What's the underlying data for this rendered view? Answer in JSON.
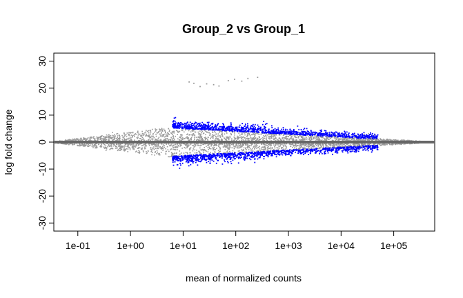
{
  "chart_data": {
    "type": "scatter",
    "title": "Group_2 vs Group_1",
    "xlabel": "mean of normalized counts",
    "ylabel": "log fold change",
    "x_scale": "log10",
    "xlim": [
      0.035,
      600000
    ],
    "ylim": [
      -33,
      33
    ],
    "x_ticks": [
      "1e-01",
      "1e+00",
      "1e+01",
      "1e+02",
      "1e+03",
      "1e+04",
      "1e+05"
    ],
    "x_tick_values": [
      0.1,
      1,
      10,
      100,
      1000,
      10000,
      100000
    ],
    "y_ticks": [
      "-30",
      "-20",
      "-10",
      "0",
      "10",
      "20",
      "30"
    ],
    "y_tick_values": [
      -30,
      -20,
      -10,
      0,
      10,
      20,
      30
    ],
    "reference_line": {
      "y": 0,
      "color": "#666666"
    },
    "grid": false,
    "legend": "none",
    "colors": {
      "not_significant": "#999999",
      "significant": "#0000ff"
    },
    "series": [
      {
        "values_note": "",
        "color": "#999999",
        "outliers": [
          {
            "x": 13,
            "y": 22.3
          },
          {
            "x": 16,
            "y": 21.8
          },
          {
            "x": 21,
            "y": 20.6
          },
          {
            "x": 28,
            "y": 21.6
          },
          {
            "x": 38,
            "y": 21.3
          },
          {
            "x": 48,
            "y": 20.8
          },
          {
            "x": 72,
            "y": 22.8
          },
          {
            "x": 95,
            "y": 23.3
          },
          {
            "x": 130,
            "y": 22.6
          },
          {
            "x": 170,
            "y": 23.6
          },
          {
            "x": 260,
            "y": 24.0
          }
        ]
      }
    ]
  }
}
